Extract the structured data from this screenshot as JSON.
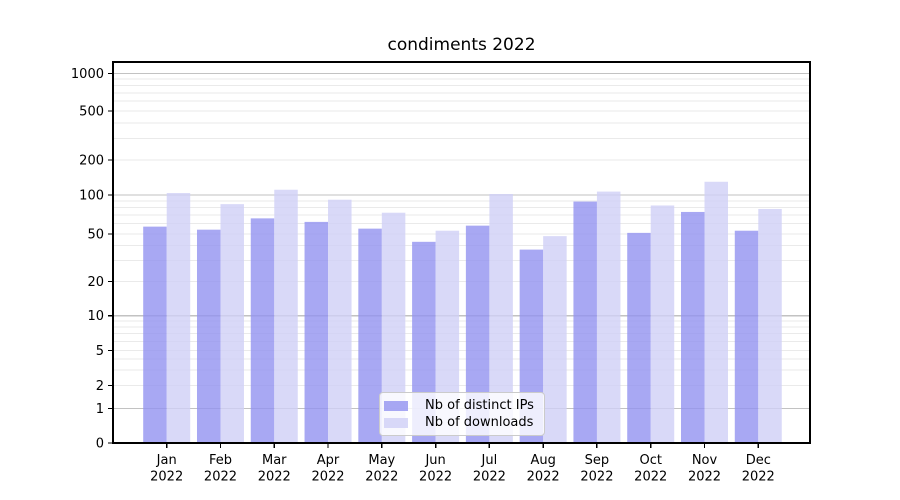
{
  "chart_data": {
    "type": "bar",
    "title": "condiments 2022",
    "categories": [
      "Jan",
      "Feb",
      "Mar",
      "Apr",
      "May",
      "Jun",
      "Jul",
      "Aug",
      "Sep",
      "Oct",
      "Nov",
      "Dec"
    ],
    "category_year": "2022",
    "series": [
      {
        "name": "Nb of distinct IPs",
        "color": "#9292f0",
        "values": [
          57,
          54,
          66,
          62,
          55,
          43,
          58,
          37,
          89,
          51,
          74,
          53
        ]
      },
      {
        "name": "Nb of downloads",
        "color": "#d0d0f6",
        "values": [
          104,
          85,
          111,
          92,
          73,
          53,
          102,
          48,
          107,
          83,
          130,
          78
        ]
      }
    ],
    "bar_opacity": 0.8,
    "yscale": "log-like (0,1,2,5,10,20,50,100,200,500,1000)",
    "yticks": [
      0,
      1,
      2,
      5,
      10,
      20,
      50,
      100,
      200,
      500,
      1000
    ],
    "ylim": [
      0,
      1250
    ],
    "xlabel": "",
    "ylabel": "",
    "grid": "horizontal, major and minor log lines",
    "legend_position": "lower center inside plot"
  },
  "legend": {
    "items": [
      {
        "label": "Nb of distinct IPs"
      },
      {
        "label": "Nb of downloads"
      }
    ]
  },
  "colors": {
    "background": "#ffffff",
    "bar_distinct_ips_rendered": "#a8a8f3",
    "bar_downloads_rendered": "#d9d9f8",
    "grid_major": "#c2c2c2",
    "grid_minor": "#eaeaea",
    "axis_spine": "#000000",
    "text": "#000000",
    "legend_border": "#cbcbcb"
  }
}
